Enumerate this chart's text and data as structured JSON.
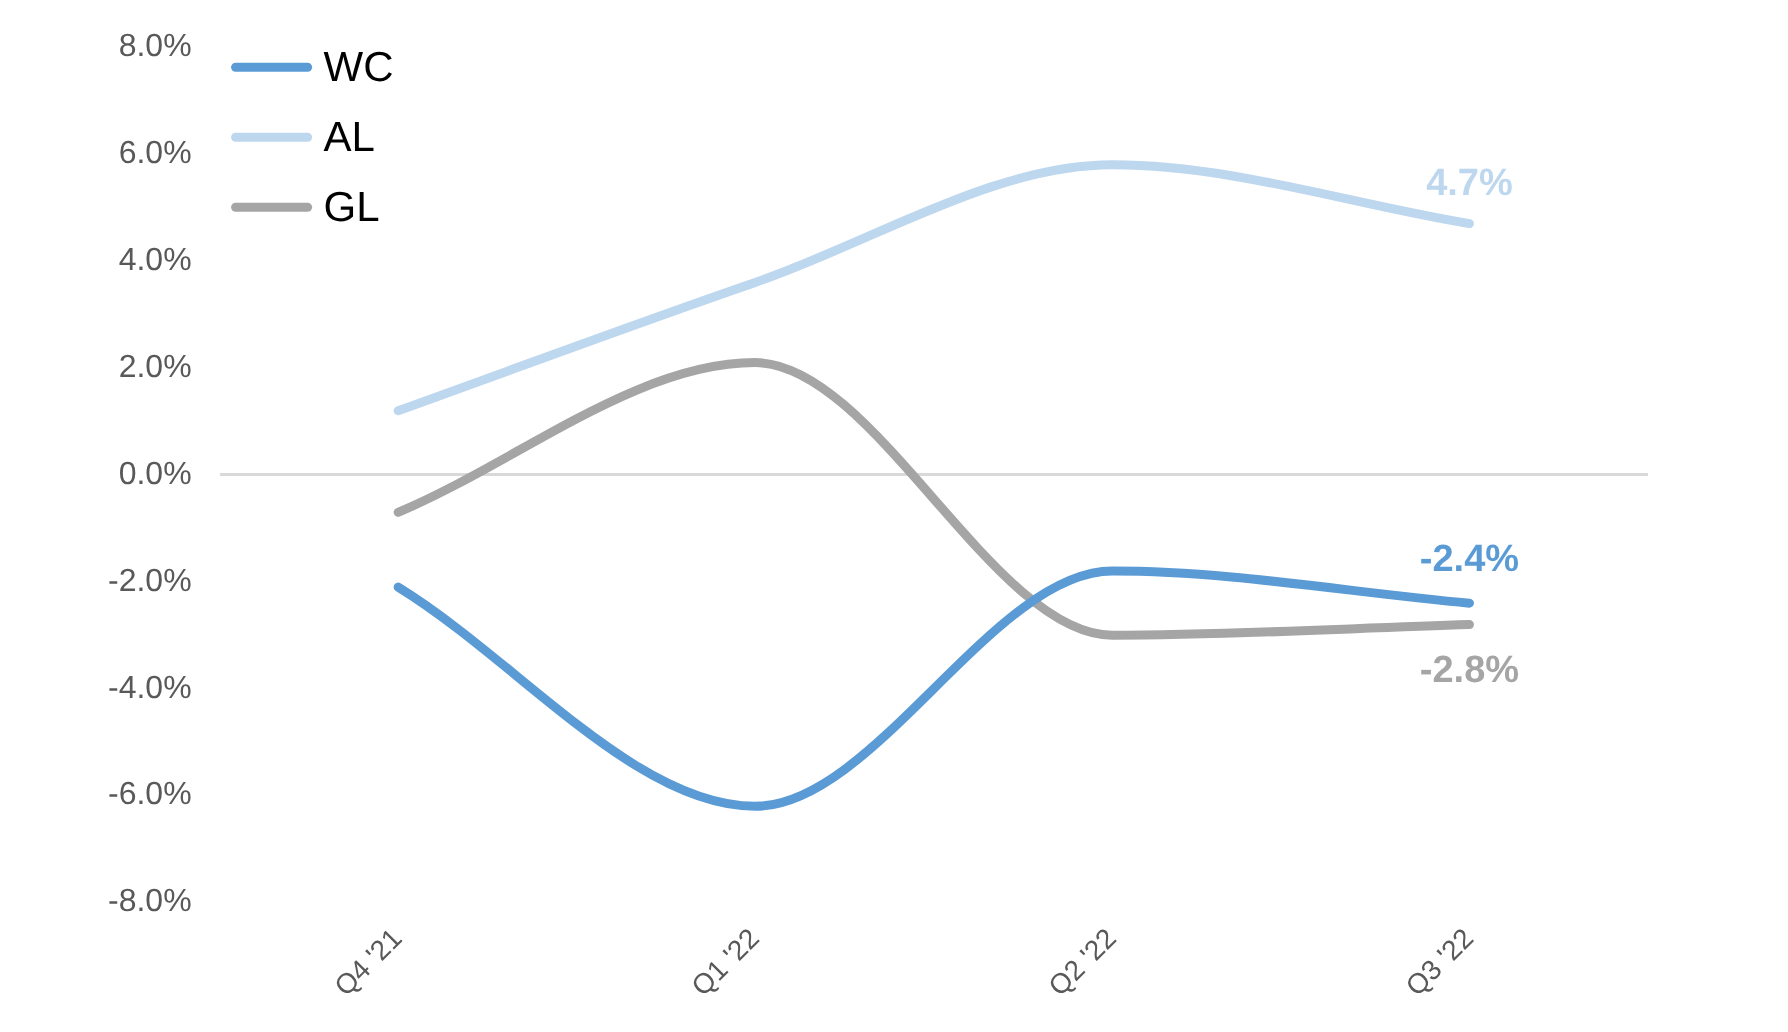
{
  "chart_data": {
    "type": "line",
    "categories": [
      "Q4 '21",
      "Q1 '22",
      "Q2 '22",
      "Q3 '22"
    ],
    "series": [
      {
        "name": "WC",
        "color": "#5b9bd5",
        "values": [
          -2.1,
          -6.2,
          -1.8,
          -2.4
        ],
        "value_labels": [
          null,
          null,
          null,
          "-2.4%"
        ]
      },
      {
        "name": "AL",
        "color": "#bdd7ee",
        "values": [
          1.2,
          3.6,
          5.8,
          4.7
        ],
        "value_labels": [
          null,
          null,
          null,
          "4.7%"
        ]
      },
      {
        "name": "GL",
        "color": "#a5a5a5",
        "values": [
          -0.7,
          2.1,
          -3.0,
          -2.8
        ],
        "value_labels": [
          null,
          null,
          null,
          "-2.8%"
        ]
      }
    ],
    "ylim": [
      -8,
      8
    ],
    "yticks": [
      {
        "value": -8,
        "label": "-8.0%"
      },
      {
        "value": -6,
        "label": "-6.0%"
      },
      {
        "value": -4,
        "label": "-4.0%"
      },
      {
        "value": -2,
        "label": "-2.0%"
      },
      {
        "value": 0,
        "label": "0.0%"
      },
      {
        "value": 2,
        "label": "2.0%"
      },
      {
        "value": 4,
        "label": "4.0%"
      },
      {
        "value": 6,
        "label": "6.0%"
      },
      {
        "value": 8,
        "label": "8.0%"
      }
    ],
    "legend": "top left",
    "marker": "none",
    "line_style": "solid"
  }
}
